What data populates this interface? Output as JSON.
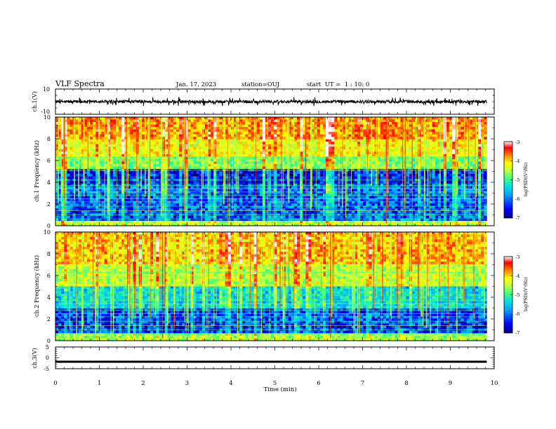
{
  "header": {
    "title": "VLF Spectra",
    "date": "Jan. 17, 2023",
    "station": "station=OUJ",
    "start": "start  UT =  1 : 10: 0"
  },
  "chart_data": [
    {
      "type": "line",
      "panel": "ch1-waveform",
      "ylabel": "ch.1(V)",
      "ylim": [
        -10,
        10
      ],
      "yticks": [
        "10",
        "-10"
      ],
      "xlim": [
        0,
        10
      ],
      "x_end": 9.83,
      "series": [
        {
          "baseline": 0,
          "amplitude": 1.2,
          "spikes_to": 3.5,
          "color": "#000000"
        }
      ]
    },
    {
      "type": "heatmap",
      "panel": "ch1-spectrogram",
      "ylabel": "ch.1 Frequency (kHz)",
      "ylim": [
        0,
        10
      ],
      "yticks": [
        "0",
        "2",
        "4",
        "6",
        "8",
        "10"
      ],
      "xlim": [
        0,
        10
      ],
      "colorbar": {
        "label": "log(PSD)(V²/Hz)",
        "range": [
          -7,
          -3
        ],
        "ticks": [
          "-3",
          "-4",
          "-5",
          "-6",
          "-7"
        ],
        "colors": [
          "#000080",
          "#0000ff",
          "#00a0ff",
          "#00e0e0",
          "#40ff80",
          "#c0ff40",
          "#ffff00",
          "#ff8000",
          "#ff0000",
          "#ffffff"
        ]
      },
      "bands": [
        {
          "from": 0,
          "to": 0.5,
          "level": -4.9
        },
        {
          "from": 0.5,
          "to": 3.8,
          "level": -6.4
        },
        {
          "from": 3.8,
          "to": 5.3,
          "level": -6.7
        },
        {
          "from": 5.3,
          "to": 6.3,
          "level": -5.2
        },
        {
          "from": 6.3,
          "to": 8.0,
          "level": -4.6
        },
        {
          "from": 8.0,
          "to": 10,
          "level": -4.1
        }
      ]
    },
    {
      "type": "heatmap",
      "panel": "ch2-spectrogram",
      "ylabel": "ch.2 Frequency (kHz)",
      "ylim": [
        0,
        10
      ],
      "yticks": [
        "0",
        "2",
        "4",
        "6",
        "8",
        "10"
      ],
      "xlim": [
        0,
        10
      ],
      "colorbar": {
        "label": "log(PSD)(V²/Hz)",
        "range": [
          -7,
          -3
        ],
        "ticks": [
          "-3",
          "-4",
          "-5",
          "-6",
          "-7"
        ],
        "colors": [
          "#000080",
          "#0000ff",
          "#00a0ff",
          "#00e0e0",
          "#40ff80",
          "#c0ff40",
          "#ffff00",
          "#ff8000",
          "#ff0000",
          "#ffffff"
        ]
      },
      "bands": [
        {
          "from": 0,
          "to": 0.6,
          "level": -5.0
        },
        {
          "from": 0.6,
          "to": 3.0,
          "level": -6.5
        },
        {
          "from": 3.0,
          "to": 5.0,
          "level": -5.9
        },
        {
          "from": 5.0,
          "to": 7.0,
          "level": -4.9
        },
        {
          "from": 7.0,
          "to": 10,
          "level": -4.3
        }
      ]
    },
    {
      "type": "line",
      "panel": "ch3-waveform",
      "ylabel": "ch.3(V)",
      "ylim": [
        -5,
        5
      ],
      "yticks": [
        "5",
        "0",
        "-5"
      ],
      "xlim": [
        0,
        10
      ],
      "x_end": 9.83,
      "series": [
        {
          "baseline": -1.5,
          "amplitude": 0.2,
          "color": "#000000"
        }
      ]
    }
  ],
  "x_axis": {
    "label": "Time (min)",
    "ticks": [
      "0",
      "1",
      "2",
      "3",
      "4",
      "5",
      "6",
      "7",
      "8",
      "9",
      "10"
    ],
    "range": [
      0,
      10
    ]
  }
}
